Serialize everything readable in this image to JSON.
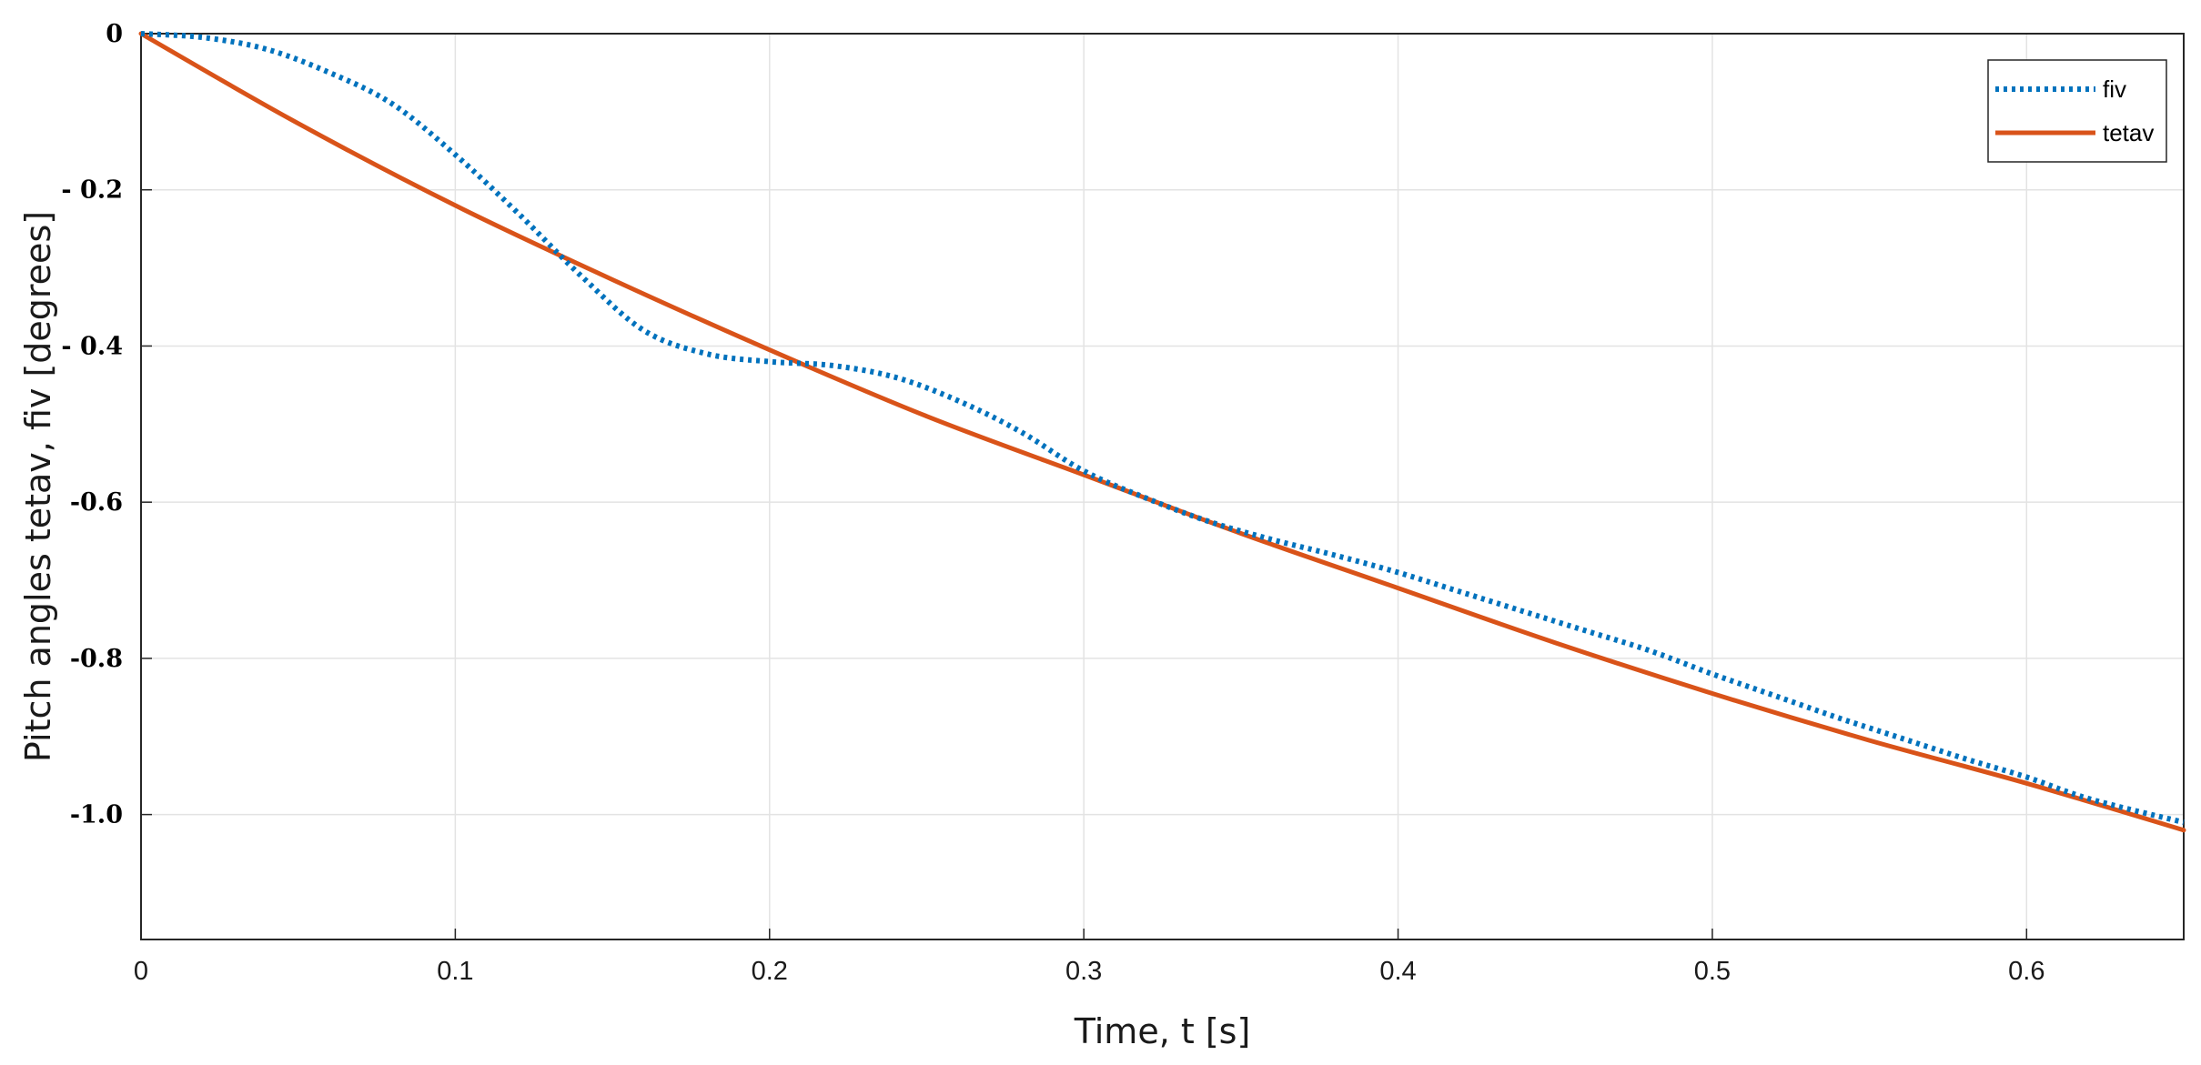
{
  "chart_data": {
    "type": "line",
    "title": "",
    "xlabel": "Time, t [s]",
    "ylabel": "Pitch angles tetav, fiv [degrees]",
    "xlim": [
      0,
      0.65
    ],
    "ylim": [
      -1.16,
      0.0
    ],
    "xticks": [
      0,
      0.1,
      0.2,
      0.3,
      0.4,
      0.5,
      0.6
    ],
    "xtick_labels": [
      "0",
      "0.1",
      "0.2",
      "0.3",
      "0.4",
      "0.5",
      "0.6"
    ],
    "yticks": [
      0,
      -0.2,
      -0.4,
      -0.6,
      -0.8,
      -1.0
    ],
    "ytick_labels": [
      "0",
      "- 0.2",
      "- 0.4",
      "-0.6",
      "-0.8",
      "-1.0"
    ],
    "grid": true,
    "legend_position": "top-right",
    "series": [
      {
        "name": "fiv",
        "style": "dotted",
        "color": "#0072BD",
        "x": [
          0,
          0.02,
          0.04,
          0.06,
          0.08,
          0.1,
          0.12,
          0.14,
          0.16,
          0.18,
          0.2,
          0.22,
          0.24,
          0.26,
          0.28,
          0.3,
          0.32,
          0.34,
          0.36,
          0.38,
          0.4,
          0.42,
          0.44,
          0.46,
          0.48,
          0.5,
          0.52,
          0.54,
          0.56,
          0.58,
          0.6,
          0.62,
          0.65
        ],
        "y": [
          0,
          -0.005,
          -0.02,
          -0.05,
          -0.09,
          -0.155,
          -0.23,
          -0.31,
          -0.38,
          -0.41,
          -0.42,
          -0.425,
          -0.44,
          -0.47,
          -0.51,
          -0.56,
          -0.595,
          -0.625,
          -0.648,
          -0.668,
          -0.69,
          -0.715,
          -0.74,
          -0.765,
          -0.79,
          -0.82,
          -0.848,
          -0.876,
          -0.902,
          -0.928,
          -0.952,
          -0.98,
          -1.01
        ]
      },
      {
        "name": "tetav",
        "style": "solid",
        "color": "#D95319",
        "x": [
          0,
          0.05,
          0.1,
          0.15,
          0.2,
          0.25,
          0.3,
          0.35,
          0.4,
          0.45,
          0.5,
          0.55,
          0.6,
          0.65
        ],
        "y": [
          0,
          -0.115,
          -0.22,
          -0.315,
          -0.405,
          -0.49,
          -0.565,
          -0.64,
          -0.71,
          -0.78,
          -0.845,
          -0.905,
          -0.96,
          -1.02
        ]
      }
    ]
  }
}
